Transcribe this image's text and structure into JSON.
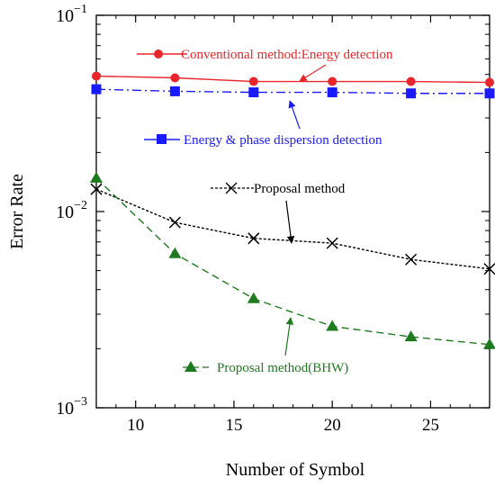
{
  "chart_data": {
    "type": "line",
    "title": "",
    "xlabel": "Number of Symbol",
    "ylabel": "Error Rate",
    "xlim": [
      8,
      28
    ],
    "ylim": [
      0.001,
      0.1
    ],
    "yscale": "log",
    "x_ticks": [
      10,
      15,
      20,
      25
    ],
    "y_ticks": [
      {
        "value": 0.1,
        "base": "10",
        "exp": "−1"
      },
      {
        "value": 0.01,
        "base": "10",
        "exp": "−2"
      },
      {
        "value": 0.001,
        "base": "10",
        "exp": "−3"
      }
    ],
    "grid": false,
    "series": [
      {
        "name": "Conventional method:Energy detection",
        "color": "#e8262b",
        "marker": "circle",
        "line": "solid",
        "x": [
          8,
          12,
          16,
          20,
          24,
          28
        ],
        "y": [
          0.049,
          0.048,
          0.046,
          0.046,
          0.046,
          0.0455
        ]
      },
      {
        "name": "Energy & phase dispersion detection",
        "color": "#1a1aff",
        "marker": "square",
        "line": "dashdot",
        "x": [
          8,
          12,
          16,
          20,
          24,
          28
        ],
        "y": [
          0.042,
          0.041,
          0.0405,
          0.0405,
          0.04,
          0.04
        ]
      },
      {
        "name": "Proposal method",
        "color": "#000000",
        "marker": "cross",
        "line": "dotted",
        "x": [
          8,
          12,
          16,
          20,
          24,
          28
        ],
        "y": [
          0.013,
          0.0088,
          0.0073,
          0.0069,
          0.0057,
          0.0051
        ]
      },
      {
        "name": "Proposal method(BHW)",
        "color": "#1e7a1e",
        "marker": "triangle",
        "line": "dashed",
        "x": [
          8,
          12,
          16,
          20,
          24,
          28
        ],
        "y": [
          0.0148,
          0.0061,
          0.0036,
          0.0026,
          0.0023,
          0.0021
        ]
      }
    ]
  }
}
